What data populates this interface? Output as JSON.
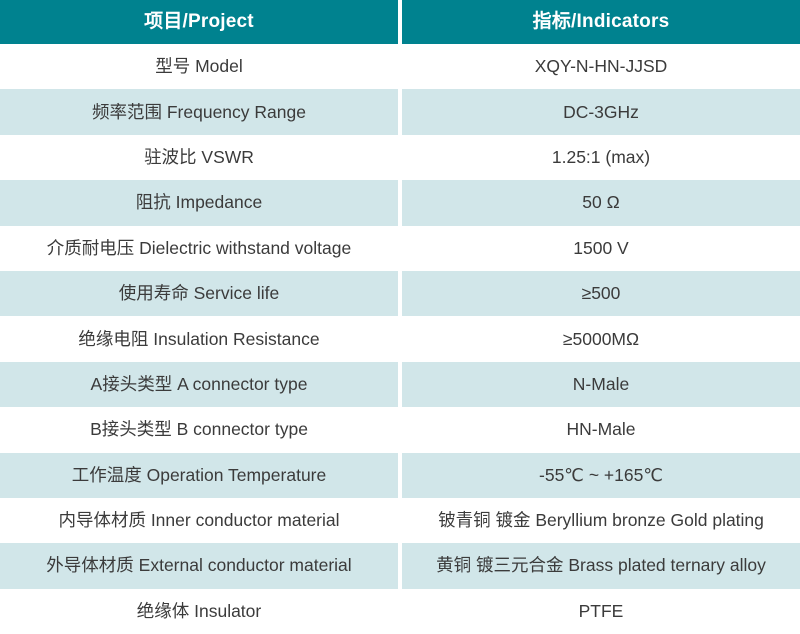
{
  "table": {
    "header": {
      "project": "项目/Project",
      "indicators": "指标/Indicators"
    },
    "rows": [
      {
        "project": "型号 Model",
        "indicator": "XQY-N-HN-JJSD"
      },
      {
        "project": "频率范围 Frequency Range",
        "indicator": "DC-3GHz"
      },
      {
        "project": "驻波比 VSWR",
        "indicator": "1.25:1 (max)"
      },
      {
        "project": "阻抗 Impedance",
        "indicator": "50 Ω"
      },
      {
        "project": "介质耐电压 Dielectric withstand voltage",
        "indicator": "1500 V"
      },
      {
        "project": "使用寿命 Service life",
        "indicator": "≥500"
      },
      {
        "project": "绝缘电阻 Insulation Resistance",
        "indicator": "≥5000MΩ"
      },
      {
        "project": "A接头类型 A connector type",
        "indicator": "N-Male"
      },
      {
        "project": "B接头类型 B connector type",
        "indicator": "HN-Male"
      },
      {
        "project": "工作温度 Operation Temperature",
        "indicator": "-55℃ ~ +165℃"
      },
      {
        "project": "内导体材质 Inner conductor material",
        "indicator": "铍青铜 镀金 Beryllium bronze Gold plating"
      },
      {
        "project": "外导体材质 External conductor material",
        "indicator": "黄铜 镀三元合金 Brass plated ternary alloy"
      },
      {
        "project": "绝缘体 Insulator",
        "indicator": "PTFE"
      }
    ],
    "colors": {
      "header_bg": "#00828F",
      "header_text": "#ffffff",
      "row_bg": "#ffffff",
      "row_alt_bg": "#d1e6e9",
      "body_text": "#3b3b3b",
      "divider": "#ffffff"
    }
  },
  "chart_data": {
    "type": "table",
    "title": "",
    "columns": [
      "项目/Project",
      "指标/Indicators"
    ],
    "rows": [
      [
        "型号 Model",
        "XQY-N-HN-JJSD"
      ],
      [
        "频率范围 Frequency Range",
        "DC-3GHz"
      ],
      [
        "驻波比 VSWR",
        "1.25:1 (max)"
      ],
      [
        "阻抗 Impedance",
        "50 Ω"
      ],
      [
        "介质耐电压 Dielectric withstand voltage",
        "1500 V"
      ],
      [
        "使用寿命 Service life",
        "≥500"
      ],
      [
        "绝缘电阻 Insulation Resistance",
        "≥5000MΩ"
      ],
      [
        "A接头类型 A connector type",
        "N-Male"
      ],
      [
        "B接头类型 B connector type",
        "HN-Male"
      ],
      [
        "工作温度 Operation Temperature",
        "-55℃ ~ +165℃"
      ],
      [
        "内导体材质 Inner conductor material",
        "铍青铜 镀金 Beryllium bronze Gold plating"
      ],
      [
        "外导体材质 External conductor material",
        "黄铜 镀三元合金 Brass plated ternary alloy"
      ],
      [
        "绝缘体 Insulator",
        "PTFE"
      ]
    ],
    "layout": {
      "header_style": "teal background, bold white text",
      "body_style": "alternating white and light teal rows, centered text",
      "column_divider": "4px white vertical gap"
    }
  }
}
